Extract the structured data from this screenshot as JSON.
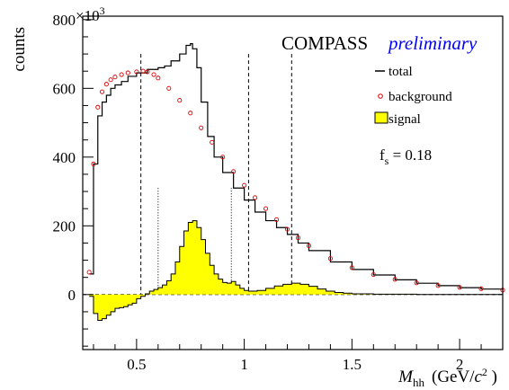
{
  "chart_data": {
    "type": "line",
    "collaboration": "COMPASS",
    "status": "preliminary",
    "ylabel": "counts",
    "y_multiplier": "×10",
    "y_multiplier_exp": "3",
    "xlabel_var": "M",
    "xlabel_sub": "hh",
    "xlabel_unit_open": "(GeV/",
    "xlabel_unit_c": "c",
    "xlabel_unit_exp": "2",
    "xlabel_unit_close": " )",
    "fs_label": "f",
    "fs_sub": "s",
    "fs_value": " = 0.18",
    "xlim": [
      0.25,
      2.2
    ],
    "ylim": [
      -160,
      810
    ],
    "xticks": [
      0.5,
      1,
      1.5,
      2
    ],
    "xtick_labels": [
      "0.5",
      "1",
      "1.5",
      "2"
    ],
    "yticks": [
      0,
      200,
      400,
      600,
      800
    ],
    "ytick_labels": [
      "0",
      "200",
      "400",
      "600",
      "800"
    ],
    "grid": false,
    "legend_position": "right",
    "legend": [
      {
        "label": "total",
        "style": "line",
        "color": "#000000"
      },
      {
        "label": "background",
        "style": "marker",
        "color": "#dd0000"
      },
      {
        "label": "signal",
        "style": "fill",
        "color": "#ffff00"
      }
    ],
    "colors": {
      "total": "#000000",
      "background": "#dd0000",
      "signal_fill": "#ffff00",
      "preliminary": "#0000ff"
    },
    "dashed_lines_x": [
      0.52,
      1.02,
      1.22
    ],
    "dotted_lines_x": [
      0.6,
      0.94
    ],
    "series": [
      {
        "name": "total",
        "x": [
          0.28,
          0.3,
          0.32,
          0.34,
          0.36,
          0.38,
          0.4,
          0.43,
          0.46,
          0.5,
          0.55,
          0.6,
          0.63,
          0.66,
          0.7,
          0.73,
          0.75,
          0.76,
          0.78,
          0.8,
          0.83,
          0.86,
          0.9,
          0.95,
          1.0,
          1.05,
          1.1,
          1.15,
          1.2,
          1.25,
          1.3,
          1.4,
          1.5,
          1.6,
          1.7,
          1.8,
          1.9,
          2.0,
          2.1,
          2.2
        ],
        "y": [
          60,
          380,
          520,
          560,
          580,
          600,
          610,
          620,
          635,
          645,
          655,
          660,
          665,
          680,
          700,
          725,
          730,
          715,
          660,
          560,
          460,
          400,
          355,
          310,
          275,
          240,
          215,
          195,
          175,
          150,
          128,
          95,
          73,
          57,
          43,
          33,
          26,
          20,
          16,
          12
        ]
      },
      {
        "name": "background",
        "x": [
          0.28,
          0.3,
          0.32,
          0.34,
          0.36,
          0.38,
          0.4,
          0.43,
          0.46,
          0.5,
          0.53,
          0.55,
          0.58,
          0.6,
          0.65,
          0.7,
          0.75,
          0.8,
          0.85,
          0.9,
          0.95,
          1.0,
          1.05,
          1.1,
          1.15,
          1.2,
          1.25,
          1.3,
          1.4,
          1.5,
          1.6,
          1.7,
          1.8,
          1.9,
          2.0,
          2.1,
          2.2
        ],
        "y": [
          65,
          380,
          545,
          590,
          612,
          625,
          633,
          640,
          645,
          648,
          650,
          648,
          640,
          630,
          600,
          565,
          528,
          485,
          443,
          400,
          358,
          318,
          282,
          250,
          218,
          190,
          165,
          142,
          105,
          78,
          58,
          44,
          34,
          26,
          21,
          17,
          13
        ]
      },
      {
        "name": "signal",
        "x": [
          0.28,
          0.3,
          0.32,
          0.34,
          0.36,
          0.38,
          0.4,
          0.42,
          0.44,
          0.46,
          0.48,
          0.5,
          0.52,
          0.54,
          0.56,
          0.58,
          0.6,
          0.62,
          0.64,
          0.66,
          0.68,
          0.7,
          0.72,
          0.74,
          0.76,
          0.78,
          0.8,
          0.82,
          0.84,
          0.86,
          0.88,
          0.9,
          0.92,
          0.94,
          0.96,
          0.98,
          1.0,
          1.02,
          1.06,
          1.1,
          1.14,
          1.18,
          1.22,
          1.26,
          1.3,
          1.34,
          1.38,
          1.42,
          1.46,
          1.5,
          1.6,
          1.7,
          1.8,
          1.9,
          2.0,
          2.1,
          2.2
        ],
        "y": [
          -5,
          -55,
          -75,
          -70,
          -60,
          -50,
          -40,
          -38,
          -35,
          -30,
          -25,
          -12,
          -5,
          2,
          10,
          15,
          20,
          28,
          40,
          60,
          95,
          140,
          185,
          210,
          215,
          195,
          160,
          120,
          85,
          60,
          45,
          35,
          33,
          38,
          28,
          18,
          12,
          10,
          12,
          18,
          25,
          30,
          33,
          30,
          24,
          16,
          10,
          6,
          4,
          2,
          1,
          1,
          0,
          0,
          0,
          0,
          0
        ]
      }
    ]
  }
}
